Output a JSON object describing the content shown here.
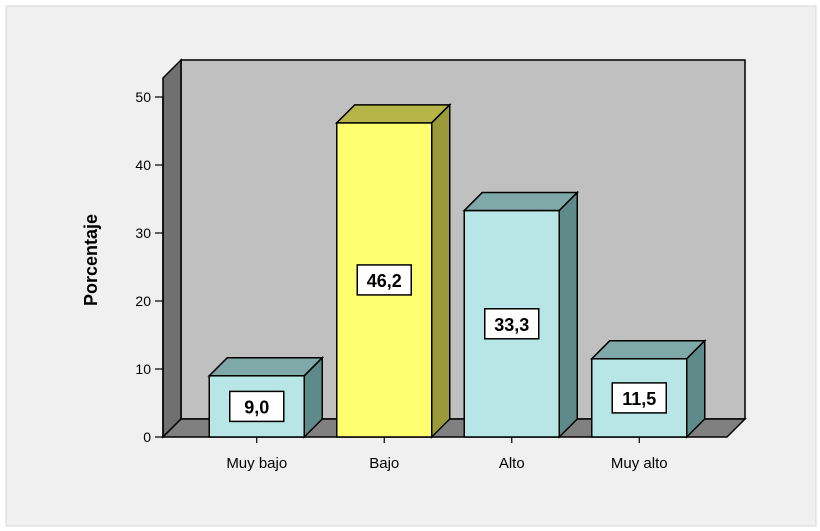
{
  "chart_data": {
    "type": "bar",
    "title": "",
    "xlabel": "",
    "ylabel": "Porcentaje",
    "ylim": [
      0,
      50
    ],
    "yticks": [
      0,
      10,
      20,
      30,
      40,
      50
    ],
    "categories": [
      "Muy bajo",
      "Bajo",
      "Alto",
      "Muy alto"
    ],
    "values": [
      9.0,
      46.2,
      33.3,
      11.5
    ],
    "data_labels": [
      "9,0",
      "46,2",
      "33,3",
      "11,5"
    ],
    "bar_colors": [
      "#b8e6e6",
      "#ffff70",
      "#b8e6e6",
      "#b8e6e6"
    ],
    "bar_side_colors": [
      "#5f8a8a",
      "#9a9a3a",
      "#5f8a8a",
      "#5f8a8a"
    ],
    "bar_top_colors": [
      "#7fa8a8",
      "#b5b548",
      "#7fa8a8",
      "#7fa8a8"
    ],
    "plot_background": "#c0c0c0",
    "wall_side_color": "#707070",
    "floor_color": "#808080",
    "grid": false,
    "style": "3d"
  }
}
